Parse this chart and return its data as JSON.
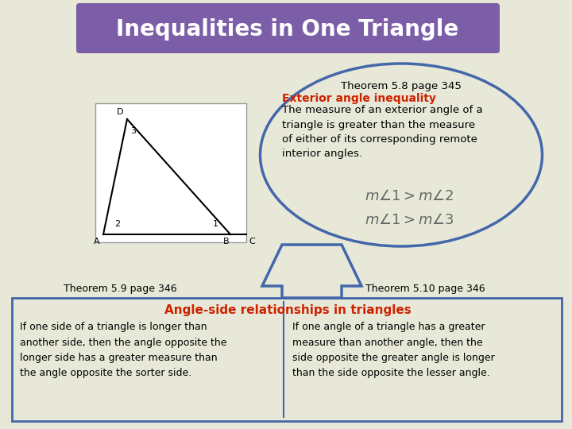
{
  "title": "Inequalities in One Triangle",
  "title_bg": "#7B5EA7",
  "title_color": "#FFFFFF",
  "bg_color": "#E8E8D8",
  "bubble_title": "Theorem 5.8 page 345",
  "bubble_subtitle": "Exterior angle inequality",
  "bubble_subtitle_color": "#CC2200",
  "bubble_body": "The measure of an exterior angle of a\ntriangle is greater than the measure\nof either of its corresponding remote\ninterior angles.",
  "bubble_eq1": "$m\\angle 1 > m\\angle 2$",
  "bubble_eq2": "$m\\angle 1 > m\\angle 3$",
  "thm59": "Theorem 5.9 page 346",
  "thm510": "Theorem 5.10 page 346",
  "angle_rel_title": "Angle-side relationships in triangles",
  "angle_rel_color": "#CC2200",
  "left_body": "If one side of a triangle is longer than\nanother side, then the angle opposite the\nlonger side has a greater measure than\nthe angle opposite the sorter side.",
  "right_body": "If one angle of a triangle has a greater\nmeasure than another angle, then the\nside opposite the greater angle is longer\nthan the side opposite the lesser angle.",
  "box_edge_color": "#4466AA",
  "triangle_color": "#000000",
  "bubble_border": "#4466AA"
}
